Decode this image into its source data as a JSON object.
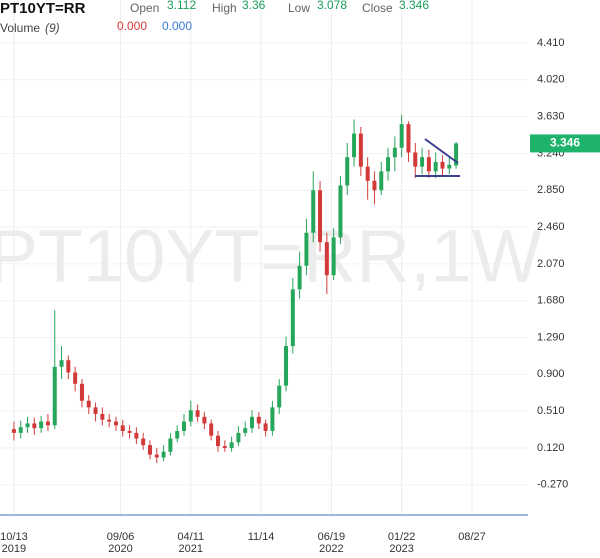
{
  "header": {
    "symbol": "PT10YT=RR",
    "open_label": "Open",
    "high_label": "High",
    "low_label": "Low",
    "close_label": "Close",
    "volume_label": "Volume",
    "volume_period": "(9)",
    "volume_value_1": "0.000",
    "volume_value_2": "0.000"
  },
  "chart_data": {
    "type": "candlestick",
    "watermark": "PT10YT=RR,1W",
    "grid": true,
    "up_color": "#26a65b",
    "down_color": "#d23a3a",
    "x": [
      "2019-10-13",
      "2019-11-03",
      "2019-11-24",
      "2019-12-15",
      "2020-01-05",
      "2020-01-26",
      "2020-02-16",
      "2020-03-08",
      "2020-03-29",
      "2020-04-19",
      "2020-05-10",
      "2020-05-31",
      "2020-06-21",
      "2020-07-12",
      "2020-08-02",
      "2020-08-23",
      "2020-09-13",
      "2020-10-04",
      "2020-10-25",
      "2020-11-15",
      "2020-12-06",
      "2020-12-27",
      "2021-01-17",
      "2021-02-07",
      "2021-02-28",
      "2021-03-21",
      "2021-04-11",
      "2021-05-02",
      "2021-05-23",
      "2021-06-13",
      "2021-07-04",
      "2021-07-25",
      "2021-08-15",
      "2021-09-05",
      "2021-09-26",
      "2021-10-17",
      "2021-11-07",
      "2021-11-28",
      "2021-12-19",
      "2022-01-09",
      "2022-01-30",
      "2022-02-20",
      "2022-03-13",
      "2022-04-03",
      "2022-04-24",
      "2022-05-15",
      "2022-06-05",
      "2022-06-26",
      "2022-07-17",
      "2022-08-07",
      "2022-08-28",
      "2022-09-18",
      "2022-10-09",
      "2022-10-30",
      "2022-11-20",
      "2022-12-11",
      "2023-01-01",
      "2023-01-22",
      "2023-02-12",
      "2023-03-05",
      "2023-03-26",
      "2023-04-16",
      "2023-05-07",
      "2023-05-28",
      "2023-06-18",
      "2023-07-09"
    ],
    "open": [
      0.32,
      0.28,
      0.34,
      0.38,
      0.33,
      0.4,
      0.36,
      0.98,
      1.05,
      0.92,
      0.8,
      0.62,
      0.55,
      0.48,
      0.42,
      0.4,
      0.36,
      0.3,
      0.28,
      0.22,
      0.15,
      0.05,
      0.02,
      0.08,
      0.22,
      0.3,
      0.4,
      0.52,
      0.45,
      0.38,
      0.25,
      0.14,
      0.12,
      0.18,
      0.28,
      0.33,
      0.45,
      0.38,
      0.3,
      0.55,
      0.78,
      1.2,
      1.8,
      2.05,
      2.4,
      2.85,
      2.3,
      1.95,
      2.35,
      2.9,
      3.2,
      3.45,
      3.1,
      2.95,
      2.85,
      3.05,
      3.2,
      3.3,
      3.55,
      3.25,
      3.1,
      3.2,
      3.05,
      3.15,
      3.08,
      3.112
    ],
    "high": [
      0.4,
      0.41,
      0.45,
      0.44,
      0.46,
      0.48,
      1.58,
      1.2,
      1.1,
      0.98,
      0.85,
      0.68,
      0.6,
      0.55,
      0.48,
      0.45,
      0.42,
      0.36,
      0.34,
      0.28,
      0.2,
      0.12,
      0.15,
      0.28,
      0.36,
      0.48,
      0.62,
      0.58,
      0.5,
      0.42,
      0.3,
      0.2,
      0.24,
      0.35,
      0.4,
      0.52,
      0.5,
      0.42,
      0.62,
      0.85,
      1.3,
      1.92,
      2.2,
      2.55,
      3.05,
      2.95,
      2.4,
      2.45,
      3.0,
      3.35,
      3.6,
      3.52,
      3.2,
      3.05,
      3.15,
      3.3,
      3.42,
      3.65,
      3.58,
      3.35,
      3.3,
      3.28,
      3.25,
      3.22,
      3.2,
      3.36
    ],
    "low": [
      0.2,
      0.22,
      0.28,
      0.26,
      0.28,
      0.3,
      0.32,
      0.85,
      0.85,
      0.72,
      0.55,
      0.48,
      0.4,
      0.36,
      0.34,
      0.3,
      0.24,
      0.22,
      0.16,
      0.1,
      0.0,
      -0.04,
      -0.02,
      0.04,
      0.18,
      0.25,
      0.35,
      0.4,
      0.32,
      0.2,
      0.08,
      0.08,
      0.08,
      0.14,
      0.24,
      0.28,
      0.32,
      0.24,
      0.25,
      0.48,
      0.72,
      1.12,
      1.7,
      1.95,
      2.3,
      2.2,
      1.75,
      1.9,
      2.28,
      2.8,
      3.1,
      3.0,
      2.75,
      2.7,
      2.8,
      2.95,
      3.05,
      3.2,
      3.15,
      2.98,
      3.02,
      2.98,
      2.98,
      3.0,
      3.02,
      3.078
    ],
    "close": [
      0.28,
      0.34,
      0.38,
      0.33,
      0.4,
      0.36,
      0.98,
      1.05,
      0.92,
      0.8,
      0.62,
      0.55,
      0.48,
      0.42,
      0.4,
      0.36,
      0.3,
      0.28,
      0.22,
      0.15,
      0.05,
      0.02,
      0.08,
      0.22,
      0.3,
      0.4,
      0.52,
      0.45,
      0.38,
      0.25,
      0.14,
      0.12,
      0.18,
      0.28,
      0.33,
      0.45,
      0.38,
      0.3,
      0.55,
      0.78,
      1.2,
      1.8,
      2.05,
      2.4,
      2.85,
      2.3,
      1.95,
      2.35,
      2.9,
      3.2,
      3.45,
      3.1,
      2.95,
      2.85,
      3.05,
      3.2,
      3.3,
      3.55,
      3.25,
      3.1,
      3.2,
      3.05,
      3.15,
      3.08,
      3.12,
      3.346
    ],
    "ylim": [
      -0.484,
      4.865
    ],
    "yticks": [
      {
        "value": -0.27,
        "label": "-0.270"
      },
      {
        "value": 0.12,
        "label": "0.120"
      },
      {
        "value": 0.51,
        "label": "0.510"
      },
      {
        "value": 0.9,
        "label": "0.900"
      },
      {
        "value": 1.29,
        "label": "1.290"
      },
      {
        "value": 1.68,
        "label": "1.680"
      },
      {
        "value": 2.07,
        "label": "2.070"
      },
      {
        "value": 2.46,
        "label": "2.460"
      },
      {
        "value": 2.85,
        "label": "2.850"
      },
      {
        "value": 3.24,
        "label": "3.240"
      },
      {
        "value": 3.63,
        "label": "3.630"
      },
      {
        "value": 4.02,
        "label": "4.020"
      },
      {
        "value": 4.41,
        "label": "4.410"
      }
    ],
    "xlim": [
      "2019-08-31",
      "2024-02-16"
    ],
    "xticks": [
      {
        "value": "2019-10-13",
        "label": "10/13",
        "year": "2019"
      },
      {
        "value": "2020-09-06",
        "label": "09/06",
        "year": "2020"
      },
      {
        "value": "2021-04-11",
        "label": "04/11",
        "year": "2021"
      },
      {
        "value": "2021-11-14",
        "label": "11/14"
      },
      {
        "value": "2022-06-19",
        "label": "06/19",
        "year": "2022"
      },
      {
        "value": "2023-01-22",
        "label": "01/22",
        "year": "2023"
      },
      {
        "value": "2023-08-27",
        "label": "08/27"
      }
    ]
  }
}
